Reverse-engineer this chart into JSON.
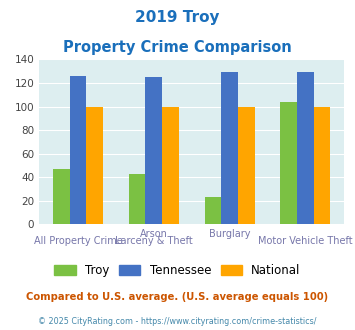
{
  "title_line1": "2019 Troy",
  "title_line2": "Property Crime Comparison",
  "troy_values": [
    47,
    43,
    23,
    104
  ],
  "tennessee_values": [
    126,
    125,
    129,
    129
  ],
  "national_values": [
    100,
    100,
    100,
    100
  ],
  "troy_color": "#7bc143",
  "tennessee_color": "#4472c4",
  "national_color": "#ffa500",
  "bg_color": "#ddeef0",
  "ylim": [
    0,
    140
  ],
  "yticks": [
    0,
    20,
    40,
    60,
    80,
    100,
    120,
    140
  ],
  "title_color": "#1a6fbb",
  "top_xlabels": [
    "",
    "Arson",
    "Burglary",
    ""
  ],
  "bottom_xlabels": [
    "All Property Crime",
    "Larceny & Theft",
    "",
    "Motor Vehicle Theft"
  ],
  "footnote1": "Compared to U.S. average. (U.S. average equals 100)",
  "footnote2": "© 2025 CityRating.com - https://www.cityrating.com/crime-statistics/",
  "footnote1_color": "#cc5500",
  "footnote2_color": "#4488aa",
  "legend_labels": [
    "Troy",
    "Tennessee",
    "National"
  ]
}
